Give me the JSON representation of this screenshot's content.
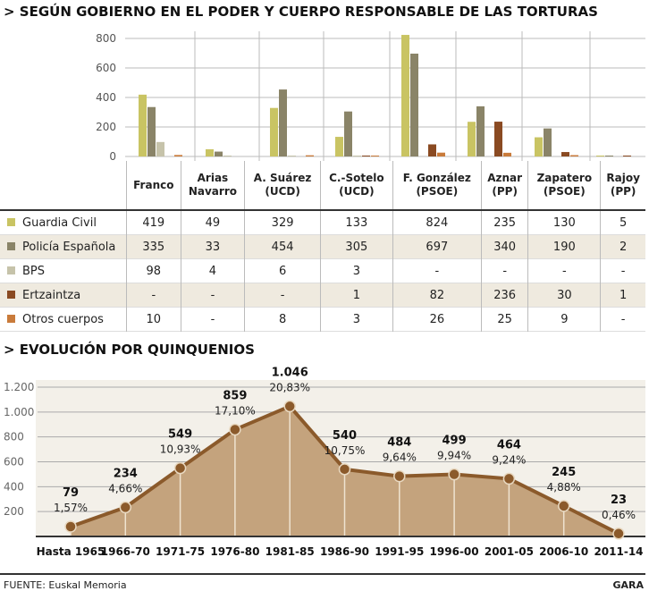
{
  "section1_title": "> SEGÚN GOBIERNO EN EL PODER Y CUERPO RESPONSABLE DE LAS TORTURAS",
  "section2_title": "> EVOLUCIÓN POR QUINQUENIOS",
  "source": "FUENTE: Euskal Memoria",
  "brand": "GARA",
  "chart_data": [
    {
      "type": "bar",
      "title": "SEGÚN GOBIERNO EN EL PODER Y CUERPO RESPONSABLE DE LAS TORTURAS",
      "ylim": [
        0,
        800
      ],
      "yticks": [
        "0",
        "200",
        "400",
        "600",
        "800"
      ],
      "categories": [
        "Franco",
        "Arias Navarro",
        "A. Suárez (UCD)",
        "C.-Sotelo (UCD)",
        "F. González (PSOE)",
        "Aznar (PP)",
        "Zapatero (PSOE)",
        "Rajoy (PP)"
      ],
      "category_lines": [
        [
          "Franco"
        ],
        [
          "Arias",
          "Navarro"
        ],
        [
          "A. Suárez",
          "(UCD)"
        ],
        [
          "C.-Sotelo",
          "(UCD)"
        ],
        [
          "F. González",
          "(PSOE)"
        ],
        [
          "Aznar",
          "(PP)"
        ],
        [
          "Zapatero",
          "(PSOE)"
        ],
        [
          "Rajoy",
          "(PP)"
        ]
      ],
      "series": [
        {
          "name": "Guardia Civil",
          "color": "#c9c463",
          "values": [
            419,
            49,
            329,
            133,
            824,
            235,
            130,
            5
          ],
          "labels": [
            "419",
            "49",
            "329",
            "133",
            "824",
            "235",
            "130",
            "5"
          ]
        },
        {
          "name": "Policía Española",
          "color": "#8a8468",
          "values": [
            335,
            33,
            454,
            305,
            697,
            340,
            190,
            2
          ],
          "labels": [
            "335",
            "33",
            "454",
            "305",
            "697",
            "340",
            "190",
            "2"
          ]
        },
        {
          "name": "BPS",
          "color": "#c6c3aa",
          "values": [
            98,
            4,
            6,
            3,
            0,
            0,
            0,
            0
          ],
          "labels": [
            "98",
            "4",
            "6",
            "3",
            "-",
            "-",
            "-",
            "-"
          ]
        },
        {
          "name": "Ertzaintza",
          "color": "#8a4a22",
          "values": [
            0,
            0,
            0,
            1,
            82,
            236,
            30,
            1
          ],
          "labels": [
            "-",
            "-",
            "-",
            "1",
            "82",
            "236",
            "30",
            "1"
          ]
        },
        {
          "name": "Otros cuerpos",
          "color": "#c97b3b",
          "values": [
            10,
            0,
            8,
            3,
            26,
            25,
            9,
            0
          ],
          "labels": [
            "10",
            "-",
            "8",
            "3",
            "26",
            "25",
            "9",
            "-"
          ]
        }
      ]
    },
    {
      "type": "area",
      "title": "EVOLUCIÓN POR QUINQUENIOS",
      "ylim": [
        0,
        1200
      ],
      "yticks": [
        "200",
        "400",
        "600",
        "800",
        "1.000",
        "1.200"
      ],
      "categories": [
        "Hasta 1965",
        "1966-70",
        "1971-75",
        "1976-80",
        "1981-85",
        "1986-90",
        "1991-95",
        "1996-00",
        "2001-05",
        "2006-10",
        "2011-14"
      ],
      "values": [
        79,
        234,
        549,
        859,
        1046,
        540,
        484,
        499,
        464,
        245,
        23
      ],
      "value_labels": [
        "79",
        "234",
        "549",
        "859",
        "1.046",
        "540",
        "484",
        "499",
        "464",
        "245",
        "23"
      ],
      "pct_labels": [
        "1,57%",
        "4,66%",
        "10,93%",
        "17,10%",
        "20,83%",
        "10,75%",
        "9,64%",
        "9,94%",
        "9,24%",
        "4,88%",
        "0,46%"
      ],
      "fill": "#c4a37d",
      "line": "#8b5a2b",
      "bg": "#f3f0e9"
    }
  ]
}
